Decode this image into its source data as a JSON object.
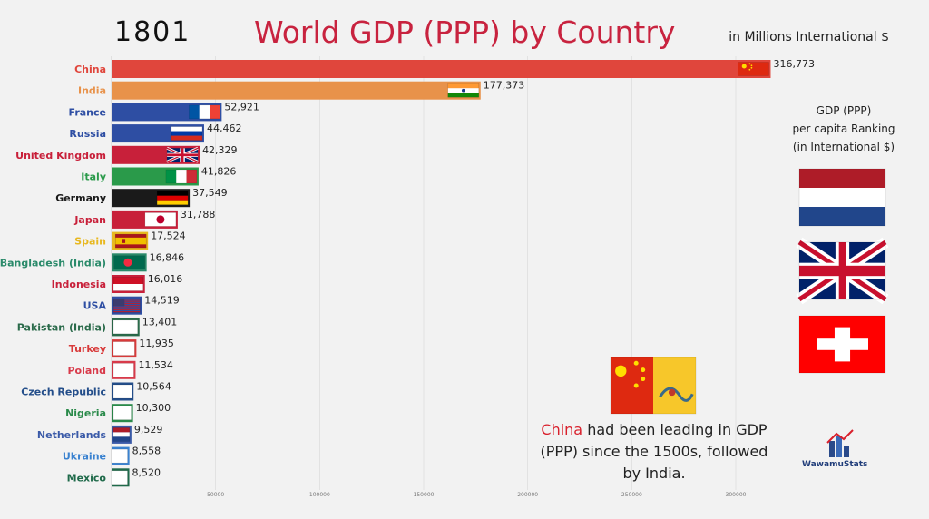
{
  "header": {
    "year": "1801",
    "title": "World GDP (PPP) by Country",
    "unit": "in Millions International $"
  },
  "ranking_panel": {
    "title_lines": [
      "GDP (PPP)",
      "per capita Ranking",
      "(in International $)"
    ],
    "flags": [
      "netherlands-flag",
      "united-kingdom-flag",
      "switzerland-flag"
    ]
  },
  "annotation": {
    "highlight": "China",
    "text": " had been leading in GDP (PPP) since the 1500s, followed by India.",
    "flag": "qing-dynasty-dragon-flag"
  },
  "logo": {
    "text": "WawamuStats",
    "icon": "rising-chart-logo-icon"
  },
  "chart_data": {
    "type": "bar",
    "orientation": "horizontal",
    "categories": [
      "China",
      "India",
      "France",
      "Russia",
      "United Kingdom",
      "Italy",
      "Germany",
      "Japan",
      "Spain",
      "Bangladesh (India)",
      "Indonesia",
      "USA",
      "Pakistan (India)",
      "Turkey",
      "Poland",
      "Czech Republic",
      "Nigeria",
      "Netherlands",
      "Ukraine",
      "Mexico"
    ],
    "values": [
      316773,
      177373,
      52921,
      44462,
      42329,
      41826,
      37549,
      31788,
      17524,
      16846,
      16016,
      14519,
      13401,
      11935,
      11534,
      10564,
      10300,
      9529,
      8558,
      8520
    ],
    "value_labels": [
      "316,773",
      "177,373",
      "52,921",
      "44,462",
      "42,329",
      "41,826",
      "37,549",
      "31,788",
      "17,524",
      "16,846",
      "16,016",
      "14,519",
      "13,401",
      "11,935",
      "11,534",
      "10,564",
      "10,300",
      "9,529",
      "8,558",
      "8,520"
    ],
    "colors": [
      "#e0463c",
      "#e8924a",
      "#2e4ea3",
      "#2e4ea3",
      "#c8203a",
      "#2a9a4a",
      "#1a1a1a",
      "#c8203a",
      "#e8b820",
      "#2a8a6a",
      "#c8203a",
      "#2e4ea3",
      "#2a6a4a",
      "#d83a3a",
      "#d83a4a",
      "#244e8a",
      "#2a8a4a",
      "#3a5aa8",
      "#3a82d0",
      "#1f6a4a"
    ],
    "flags": [
      "china-flag",
      "india-flag",
      "france-flag",
      "russia-flag",
      "united-kingdom-flag",
      "italy-flag",
      "germany-flag",
      "japan-flag",
      "spain-flag",
      "bangladesh-flag",
      "indonesia-flag",
      "usa-flag",
      "pakistan-flag",
      "turkey-flag",
      "poland-flag",
      "czech-republic-flag",
      "nigeria-flag",
      "netherlands-flag",
      "ukraine-flag",
      "mexico-flag"
    ],
    "x_ticks": [
      50000,
      100000,
      150000,
      200000,
      250000,
      300000
    ],
    "x_tick_labels": [
      "50000",
      "100000",
      "150000",
      "200000",
      "250000",
      "300000"
    ],
    "xlim": [
      0,
      320000
    ],
    "grid": true,
    "legend": "none"
  }
}
